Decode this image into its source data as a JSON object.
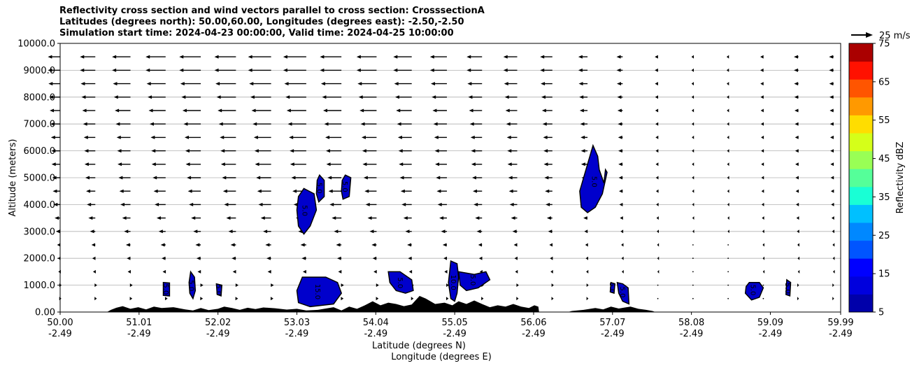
{
  "chart_data": {
    "type": "heatmap",
    "title_lines": [
      "Reflectivity cross section and wind vectors parallel to cross section: CrosssectionA",
      "Latitudes (degrees north): 50.00,60.00, Longitudes (degrees east): -2.50,-2.50",
      "Simulation start time: 2024-04-23 00:00:00, Valid time: 2024-04-25 10:00:00"
    ],
    "ylabel": "Altitude (meters)",
    "xlabel_1": "Latitude (degrees N)",
    "xlabel_2": "Longitude (degrees E)",
    "ylim": [
      0,
      10000
    ],
    "xlim": [
      50.0,
      59.99
    ],
    "y_ticks": [
      {
        "value": 0,
        "label": "0.00"
      },
      {
        "value": 1000,
        "label": "1000.0"
      },
      {
        "value": 2000,
        "label": "2000.0"
      },
      {
        "value": 3000,
        "label": "3000.0"
      },
      {
        "value": 4000,
        "label": "4000.0"
      },
      {
        "value": 5000,
        "label": "5000.0"
      },
      {
        "value": 6000,
        "label": "6000.0"
      },
      {
        "value": 7000,
        "label": "7000.0"
      },
      {
        "value": 8000,
        "label": "8000.0"
      },
      {
        "value": 9000,
        "label": "9000.0"
      },
      {
        "value": 10000,
        "label": "10000.0"
      }
    ],
    "x_ticks": [
      {
        "lat": 50.0,
        "lat_label": "50.00",
        "lon_label": "-2.49"
      },
      {
        "lat": 51.01,
        "lat_label": "51.01",
        "lon_label": "-2.49"
      },
      {
        "lat": 52.02,
        "lat_label": "52.02",
        "lon_label": "-2.49"
      },
      {
        "lat": 53.03,
        "lat_label": "53.03",
        "lon_label": "-2.49"
      },
      {
        "lat": 54.04,
        "lat_label": "54.04",
        "lon_label": "-2.49"
      },
      {
        "lat": 55.05,
        "lat_label": "55.05",
        "lon_label": "-2.49"
      },
      {
        "lat": 56.06,
        "lat_label": "56.06",
        "lon_label": "-2.49"
      },
      {
        "lat": 57.07,
        "lat_label": "57.07",
        "lon_label": "-2.49"
      },
      {
        "lat": 58.08,
        "lat_label": "58.08",
        "lon_label": "-2.49"
      },
      {
        "lat": 59.09,
        "lat_label": "59.09",
        "lon_label": "-2.49"
      },
      {
        "lat": 59.99,
        "lat_label": "59.99",
        "lon_label": "-2.49"
      }
    ],
    "grid": "horizontal",
    "colorbar": {
      "label": "Reflectivity dBZ",
      "levels": [
        5,
        10,
        15,
        20,
        25,
        30,
        35,
        40,
        45,
        50,
        55,
        60,
        65,
        70,
        75
      ],
      "tick_labels": [
        "5",
        "15",
        "25",
        "35",
        "45",
        "55",
        "65",
        "75"
      ],
      "colors": [
        "#0000aa",
        "#0000dd",
        "#0000ff",
        "#0055ff",
        "#0088ff",
        "#00c0ff",
        "#19ffd5",
        "#55ff99",
        "#99ff55",
        "#d5ff19",
        "#ffdd00",
        "#ff9900",
        "#ff5500",
        "#ff1100",
        "#aa0000"
      ]
    },
    "quiver_key": {
      "label": "25 m/s",
      "speed": 25
    },
    "wind": {
      "cols_lat": [
        50.0,
        50.45,
        50.9,
        51.35,
        51.8,
        52.25,
        52.7,
        53.15,
        53.6,
        54.05,
        54.5,
        54.95,
        55.4,
        55.85,
        56.3,
        56.75,
        57.2,
        57.65,
        58.1,
        58.55,
        59.0,
        59.45,
        59.9
      ],
      "rows_alt": [
        500,
        1000,
        1500,
        2000,
        2500,
        3000,
        3500,
        4000,
        4500,
        5000,
        5500,
        6000,
        6500,
        7000,
        7500,
        8000,
        8500,
        9000,
        9500
      ],
      "col_speed": [
        8,
        10,
        12,
        13,
        14,
        14,
        15,
        15,
        14,
        13,
        12,
        11,
        10,
        9,
        8,
        6,
        4,
        2,
        1,
        1,
        2,
        3,
        3
      ],
      "row_factor": [
        -0.1,
        -0.12,
        0.15,
        0.2,
        0.25,
        0.35,
        0.45,
        0.55,
        0.6,
        0.65,
        0.7,
        0.72,
        0.75,
        0.8,
        0.85,
        0.9,
        0.95,
        1.0,
        1.0
      ],
      "color": "#000000"
    },
    "reflectivity_cells": [
      {
        "label": "5.0",
        "pts": [
          [
            51.32,
            1100
          ],
          [
            51.4,
            1080
          ],
          [
            51.4,
            600
          ],
          [
            51.32,
            620
          ]
        ]
      },
      {
        "label": "5.0",
        "pts": [
          [
            51.67,
            1500
          ],
          [
            51.72,
            1300
          ],
          [
            51.73,
            800
          ],
          [
            51.7,
            500
          ],
          [
            51.66,
            700
          ],
          [
            51.65,
            1100
          ]
        ]
      },
      {
        "label": "5.0",
        "pts": [
          [
            52.0,
            1050
          ],
          [
            52.07,
            1000
          ],
          [
            52.06,
            600
          ],
          [
            52.01,
            650
          ]
        ]
      },
      {
        "label": "5.0",
        "pts": [
          [
            53.12,
            4600
          ],
          [
            53.25,
            4400
          ],
          [
            53.28,
            3800
          ],
          [
            53.2,
            3200
          ],
          [
            53.12,
            2900
          ],
          [
            53.05,
            3200
          ],
          [
            53.03,
            3800
          ],
          [
            53.05,
            4300
          ]
        ]
      },
      {
        "label": "5.0",
        "pts": [
          [
            53.32,
            5100
          ],
          [
            53.38,
            4900
          ],
          [
            53.38,
            4300
          ],
          [
            53.31,
            4100
          ],
          [
            53.28,
            4400
          ],
          [
            53.29,
            4900
          ]
        ]
      },
      {
        "label": "5.0",
        "pts": [
          [
            53.65,
            5100
          ],
          [
            53.72,
            5000
          ],
          [
            53.7,
            4300
          ],
          [
            53.62,
            4200
          ],
          [
            53.6,
            4500
          ],
          [
            53.61,
            4900
          ]
        ]
      },
      {
        "label": "15.0",
        "pts": [
          [
            53.1,
            1300
          ],
          [
            53.4,
            1300
          ],
          [
            53.55,
            1100
          ],
          [
            53.6,
            700
          ],
          [
            53.5,
            300
          ],
          [
            53.2,
            200
          ],
          [
            53.05,
            350
          ],
          [
            53.03,
            800
          ]
        ]
      },
      {
        "label": "5.0",
        "pts": [
          [
            54.2,
            1500
          ],
          [
            54.35,
            1500
          ],
          [
            54.5,
            1200
          ],
          [
            54.52,
            800
          ],
          [
            54.42,
            700
          ],
          [
            54.3,
            800
          ],
          [
            54.22,
            1100
          ]
        ]
      },
      {
        "label": "10.0",
        "pts": [
          [
            55.0,
            1900
          ],
          [
            55.08,
            1800
          ],
          [
            55.1,
            1300
          ],
          [
            55.08,
            700
          ],
          [
            55.05,
            400
          ],
          [
            55.0,
            500
          ],
          [
            54.97,
            1100
          ]
        ]
      },
      {
        "label": "5.0",
        "pts": [
          [
            55.1,
            1500
          ],
          [
            55.3,
            1400
          ],
          [
            55.45,
            1500
          ],
          [
            55.5,
            1200
          ],
          [
            55.35,
            900
          ],
          [
            55.2,
            800
          ],
          [
            55.12,
            1000
          ]
        ]
      },
      {
        "label": "5.0",
        "pts": [
          [
            56.82,
            6200
          ],
          [
            56.88,
            5800
          ],
          [
            56.9,
            5300
          ],
          [
            56.96,
            4800
          ],
          [
            56.98,
            5300
          ],
          [
            57.0,
            5200
          ],
          [
            56.94,
            4400
          ],
          [
            56.85,
            3900
          ],
          [
            56.75,
            3700
          ],
          [
            56.67,
            3900
          ],
          [
            56.65,
            4500
          ],
          [
            56.72,
            5200
          ]
        ]
      },
      {
        "label": "5.0",
        "pts": [
          [
            57.05,
            1100
          ],
          [
            57.1,
            1050
          ],
          [
            57.09,
            700
          ],
          [
            57.04,
            750
          ]
        ]
      },
      {
        "label": "5.0",
        "pts": [
          [
            57.13,
            1100
          ],
          [
            57.2,
            1050
          ],
          [
            57.27,
            900
          ],
          [
            57.28,
            300
          ],
          [
            57.2,
            400
          ],
          [
            57.15,
            700
          ]
        ]
      },
      {
        "label": "5.0",
        "pts": [
          [
            58.82,
            1100
          ],
          [
            58.95,
            1100
          ],
          [
            59.0,
            900
          ],
          [
            58.95,
            550
          ],
          [
            58.85,
            450
          ],
          [
            58.77,
            700
          ],
          [
            58.78,
            950
          ]
        ]
      },
      {
        "label": "5.0",
        "pts": [
          [
            59.3,
            1200
          ],
          [
            59.35,
            1100
          ],
          [
            59.34,
            600
          ],
          [
            59.29,
            650
          ]
        ]
      }
    ],
    "terrain": [
      [
        50.0,
        0
      ],
      [
        50.6,
        0
      ],
      [
        50.65,
        80
      ],
      [
        50.72,
        160
      ],
      [
        50.8,
        220
      ],
      [
        50.9,
        120
      ],
      [
        51.0,
        180
      ],
      [
        51.1,
        100
      ],
      [
        51.2,
        200
      ],
      [
        51.3,
        150
      ],
      [
        51.45,
        180
      ],
      [
        51.6,
        100
      ],
      [
        51.7,
        60
      ],
      [
        51.8,
        150
      ],
      [
        51.9,
        70
      ],
      [
        52.02,
        120
      ],
      [
        52.1,
        200
      ],
      [
        52.2,
        150
      ],
      [
        52.3,
        80
      ],
      [
        52.4,
        160
      ],
      [
        52.5,
        110
      ],
      [
        52.6,
        170
      ],
      [
        52.75,
        140
      ],
      [
        52.9,
        90
      ],
      [
        53.03,
        120
      ],
      [
        53.15,
        60
      ],
      [
        53.3,
        80
      ],
      [
        53.5,
        180
      ],
      [
        53.6,
        60
      ],
      [
        53.7,
        200
      ],
      [
        53.8,
        120
      ],
      [
        53.9,
        250
      ],
      [
        54.0,
        400
      ],
      [
        54.1,
        250
      ],
      [
        54.2,
        350
      ],
      [
        54.3,
        300
      ],
      [
        54.4,
        220
      ],
      [
        54.5,
        280
      ],
      [
        54.6,
        600
      ],
      [
        54.68,
        500
      ],
      [
        54.8,
        300
      ],
      [
        54.92,
        350
      ],
      [
        55.02,
        250
      ],
      [
        55.1,
        400
      ],
      [
        55.2,
        300
      ],
      [
        55.3,
        430
      ],
      [
        55.4,
        300
      ],
      [
        55.5,
        180
      ],
      [
        55.6,
        250
      ],
      [
        55.7,
        200
      ],
      [
        55.8,
        300
      ],
      [
        55.9,
        200
      ],
      [
        56.0,
        150
      ],
      [
        56.07,
        250
      ],
      [
        56.12,
        200
      ],
      [
        56.13,
        0
      ],
      [
        56.5,
        0
      ],
      [
        56.55,
        40
      ],
      [
        56.7,
        80
      ],
      [
        56.85,
        150
      ],
      [
        56.95,
        100
      ],
      [
        57.05,
        200
      ],
      [
        57.15,
        130
      ],
      [
        57.3,
        200
      ],
      [
        57.4,
        120
      ],
      [
        57.5,
        80
      ],
      [
        57.58,
        40
      ],
      [
        57.62,
        0
      ],
      [
        59.99,
        0
      ]
    ]
  }
}
